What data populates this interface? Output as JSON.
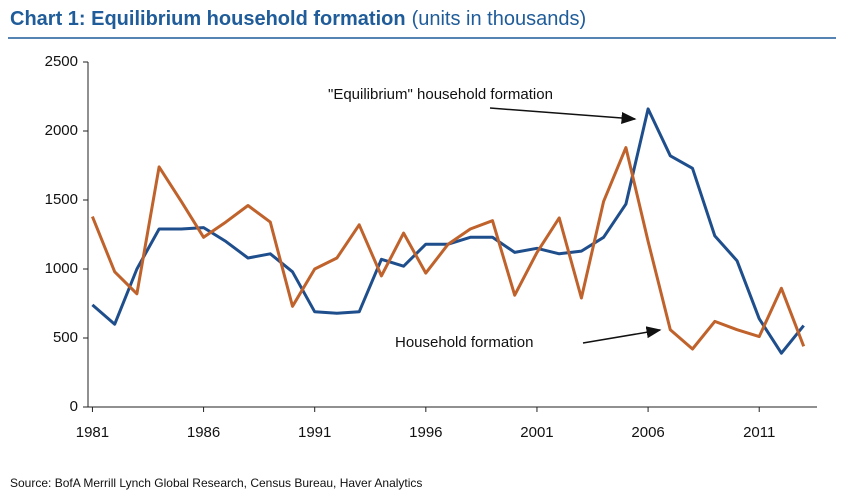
{
  "chart_data": {
    "type": "line",
    "title": "Chart 1: Equilibrium household formation",
    "subtitle": "(units in thousands)",
    "source": "Source: BofA Merrill Lynch Global Research, Census Bureau, Haver Analytics",
    "annotations": [
      "\"Equilibrium\" household formation",
      "Household formation"
    ],
    "x": [
      1981,
      1982,
      1983,
      1984,
      1985,
      1986,
      1987,
      1988,
      1989,
      1990,
      1991,
      1992,
      1993,
      1994,
      1995,
      1996,
      1997,
      1998,
      1999,
      2000,
      2001,
      2002,
      2003,
      2004,
      2005,
      2006,
      2007,
      2008,
      2009,
      2010,
      2011,
      2012,
      2013
    ],
    "series": [
      {
        "name": "\"Equilibrium\" household formation",
        "color": "#1f4e8c",
        "values": [
          740,
          600,
          1000,
          1290,
          1290,
          1300,
          1200,
          1080,
          1110,
          980,
          690,
          680,
          690,
          1070,
          1020,
          1180,
          1180,
          1230,
          1230,
          1120,
          1150,
          1110,
          1130,
          1230,
          1470,
          2160,
          1820,
          1730,
          1240,
          1060,
          640,
          390,
          590
        ]
      },
      {
        "name": "Household formation",
        "color": "#c0622b",
        "values": [
          1380,
          980,
          820,
          1740,
          1490,
          1230,
          1340,
          1460,
          1340,
          730,
          1000,
          1080,
          1320,
          950,
          1260,
          970,
          1180,
          1290,
          1350,
          810,
          1120,
          1370,
          790,
          1490,
          1880,
          1200,
          560,
          420,
          620,
          560,
          510,
          860,
          440
        ]
      }
    ],
    "xlim": [
      1980.8,
      2013.6
    ],
    "xticks": [
      1981,
      1986,
      1991,
      1996,
      2001,
      2006,
      2011
    ],
    "ylim": [
      0,
      2500
    ],
    "yticks": [
      0,
      500,
      1000,
      1500,
      2000,
      2500
    ],
    "grid": false
  }
}
